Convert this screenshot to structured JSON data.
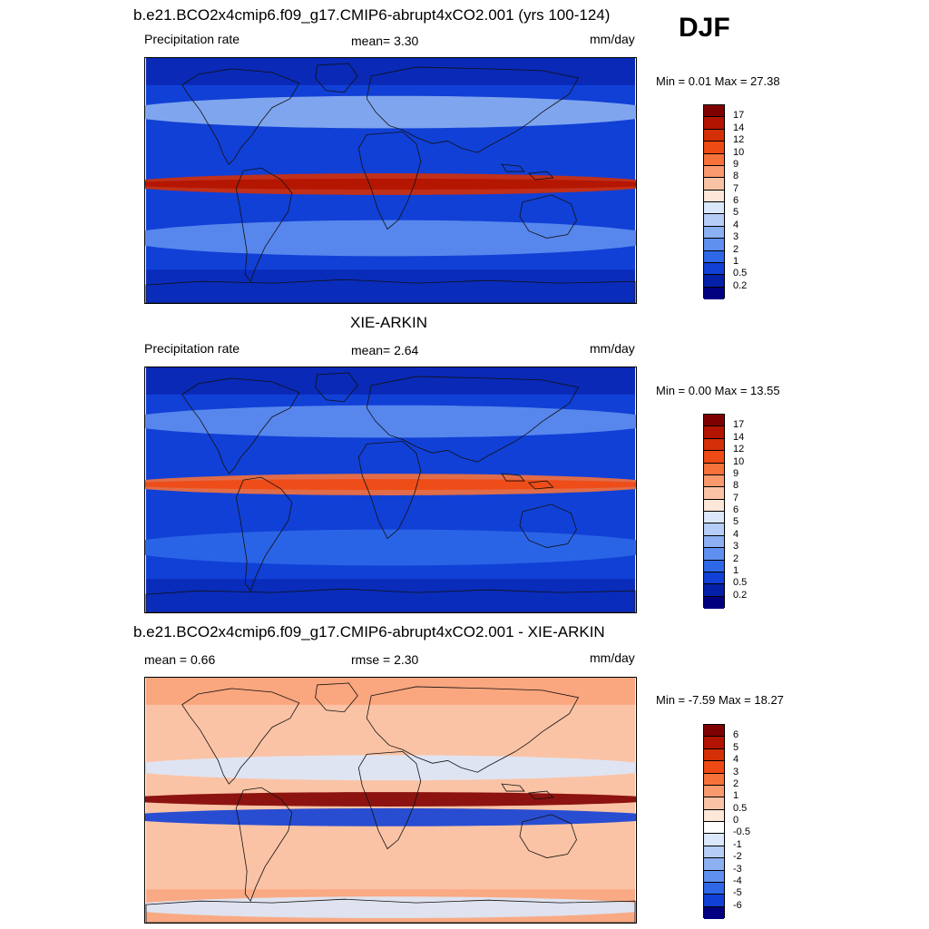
{
  "season": "DJF",
  "panels": [
    {
      "title": "b.e21.BCO2x4cmip6.f09_g17.CMIP6-abrupt4xCO2.001 (yrs 100-124)",
      "left_label": "Precipitation rate",
      "center_label": "mean=   3.30",
      "right_label": "mm/day",
      "minmax": "Min =   0.01 Max =  27.38",
      "colorbar_labels": [
        "17",
        "14",
        "12",
        "10",
        "9",
        "8",
        "7",
        "6",
        "5",
        "4",
        "3",
        "2",
        "1",
        "0.5",
        "0.2"
      ],
      "colorbar_colors": [
        "#7f0000",
        "#b31400",
        "#d42f06",
        "#ef4a14",
        "#f7713a",
        "#f99a6e",
        "#fbc3a5",
        "#fde7d9",
        "#dbe8fb",
        "#b6cdf7",
        "#8cb0f1",
        "#5f8ff0",
        "#2e68e8",
        "#1140d6",
        "#0520a8",
        "#000080"
      ],
      "map_style": "model"
    },
    {
      "title": "XIE-ARKIN",
      "left_label": "Precipitation rate",
      "center_label": "mean=   2.64",
      "right_label": "mm/day",
      "minmax": "Min =   0.00 Max =  13.55",
      "colorbar_labels": [
        "17",
        "14",
        "12",
        "10",
        "9",
        "8",
        "7",
        "6",
        "5",
        "4",
        "3",
        "2",
        "1",
        "0.5",
        "0.2"
      ],
      "colorbar_colors": [
        "#7f0000",
        "#b31400",
        "#d42f06",
        "#ef4a14",
        "#f7713a",
        "#f99a6e",
        "#fbc3a5",
        "#fde7d9",
        "#dbe8fb",
        "#b6cdf7",
        "#8cb0f1",
        "#5f8ff0",
        "#2e68e8",
        "#1140d6",
        "#0520a8",
        "#000080"
      ],
      "map_style": "obs"
    },
    {
      "title": "b.e21.BCO2x4cmip6.f09_g17.CMIP6-abrupt4xCO2.001 - XIE-ARKIN",
      "left_label": "mean =   0.66",
      "center_label": "rmse =   2.30",
      "right_label": "mm/day",
      "minmax": "Min =  -7.59 Max =  18.27",
      "colorbar_labels": [
        "6",
        "5",
        "4",
        "3",
        "2",
        "1",
        "0.5",
        "0",
        "-0.5",
        "-1",
        "-2",
        "-3",
        "-4",
        "-5",
        "-6"
      ],
      "colorbar_colors": [
        "#7f0000",
        "#b31400",
        "#d42f06",
        "#ef4a14",
        "#f7713a",
        "#f99a6e",
        "#fbc3a5",
        "#fde7d9",
        "#ffffff",
        "#dbe8fb",
        "#b6cdf7",
        "#8cb0f1",
        "#5f8ff0",
        "#2e68e8",
        "#1140d6",
        "#000080"
      ],
      "map_style": "diff"
    }
  ]
}
